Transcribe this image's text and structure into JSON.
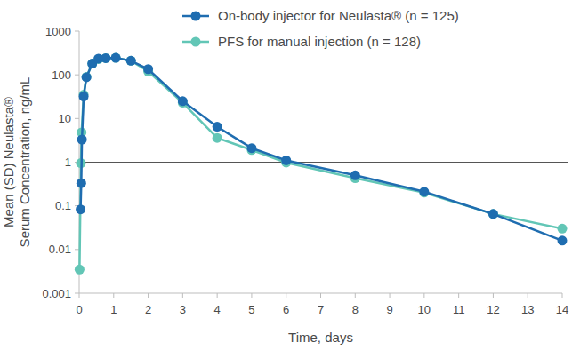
{
  "chart_data": {
    "type": "line",
    "x_label": "Time, days",
    "y_label": [
      "Mean (SD) Neulasta®",
      "Serum Concentration, ng/mL"
    ],
    "log": "y",
    "grid": false,
    "legend": "top",
    "marker": "circle",
    "xlim": [
      0,
      14
    ],
    "xticks": [
      0,
      1,
      2,
      3,
      4,
      5,
      6,
      7,
      8,
      9,
      10,
      11,
      12,
      13,
      14
    ],
    "ylim": [
      0.001,
      1000
    ],
    "yticks": [
      0.001,
      0.01,
      0.1,
      1,
      10,
      100,
      1000
    ],
    "reference_lines": [
      1
    ],
    "series": [
      {
        "name": "On-body injector for Neulasta® (n = 125)",
        "color": "#1f6db0",
        "x": [
          0.04,
          0.06,
          0.08,
          0.13,
          0.21,
          0.38,
          0.56,
          0.77,
          1.06,
          1.5,
          2,
          3,
          4,
          5,
          6,
          8,
          10,
          12,
          14
        ],
        "values": [
          0.083,
          0.33,
          3.3,
          32,
          88,
          180,
          235,
          240,
          245,
          210,
          135,
          25,
          6.5,
          2.1,
          1.1,
          0.5,
          0.21,
          0.065,
          0.016
        ]
      },
      {
        "name": "PFS for manual injection (n = 128)",
        "color": "#62c6b6",
        "x": [
          0.01,
          0.05,
          0.07,
          0.13,
          0.21,
          0.38,
          0.56,
          0.77,
          1.06,
          1.5,
          2,
          3,
          4,
          5,
          6,
          8,
          10,
          12,
          14
        ],
        "values": [
          0.0035,
          0.95,
          4.8,
          35,
          90,
          180,
          230,
          240,
          245,
          210,
          120,
          23,
          3.6,
          1.9,
          0.98,
          0.43,
          0.2,
          0.065,
          0.03
        ]
      }
    ]
  }
}
